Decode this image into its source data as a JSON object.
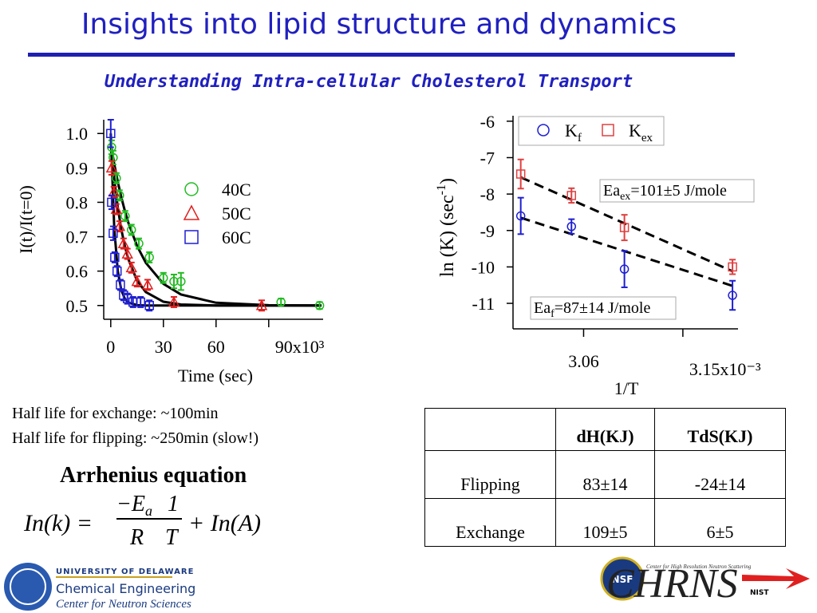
{
  "header": {
    "title": "Insights into lipid structure and dynamics",
    "subtitle": "Understanding Intra-cellular Cholesterol Transport"
  },
  "chart_data": [
    {
      "type": "scatter",
      "x_label": "Time (sec)",
      "y_label": "I(t)/I(t=0)",
      "xlim": [
        -4,
        121
      ],
      "xticks": [
        0,
        30,
        60,
        {
          "value": 90,
          "label": "90x10³"
        }
      ],
      "ylim": [
        0.46,
        1.04
      ],
      "yticks": [
        0.5,
        0.6,
        0.7,
        0.8,
        0.9,
        {
          "value": 1,
          "label": "1.0"
        }
      ],
      "legend": "upper center",
      "series": [
        {
          "name": "40C",
          "color": "#22bb22",
          "marker": "circle",
          "x": [
            0.5,
            1.4,
            3.2,
            5,
            8.2,
            11.8,
            16,
            22,
            30,
            36,
            40,
            97,
            119
          ],
          "values": [
            0.96,
            0.93,
            0.87,
            0.82,
            0.76,
            0.72,
            0.68,
            0.64,
            0.58,
            0.57,
            0.57,
            0.51,
            0.5
          ],
          "errors": [
            0.02,
            0.02,
            0.015,
            0.015,
            0.015,
            0.015,
            0.015,
            0.015,
            0.015,
            0.02,
            0.025,
            0.01,
            0.01
          ]
        },
        {
          "name": "50C",
          "color": "#e02020",
          "marker": "triangle",
          "x": [
            0.5,
            1.8,
            3.2,
            5,
            7.3,
            9.5,
            11.8,
            15,
            21,
            36,
            86
          ],
          "values": [
            0.9,
            0.83,
            0.78,
            0.73,
            0.68,
            0.65,
            0.61,
            0.57,
            0.56,
            0.51,
            0.5
          ],
          "errors": [
            0.02,
            0.015,
            0.015,
            0.015,
            0.015,
            0.015,
            0.015,
            0.015,
            0.015,
            0.015,
            0.015
          ]
        },
        {
          "name": "60C",
          "color": "#1f1fd0",
          "marker": "square",
          "x": [
            0,
            0.5,
            1.4,
            2.3,
            3.6,
            5.5,
            7.3,
            9.5,
            12.7,
            17,
            22
          ],
          "values": [
            1.0,
            0.8,
            0.71,
            0.64,
            0.6,
            0.56,
            0.53,
            0.52,
            0.51,
            0.51,
            0.5
          ],
          "errors": [
            0.04,
            0.02,
            0.02,
            0.015,
            0.015,
            0.015,
            0.015,
            0.015,
            0.015,
            0.015,
            0.015
          ]
        }
      ],
      "fits": [
        {
          "color": "#000000",
          "x": [
            0,
            2,
            4,
            6,
            8,
            10,
            15,
            20,
            30,
            40,
            60,
            90,
            120
          ],
          "values": [
            0.97,
            0.911,
            0.86,
            0.815,
            0.776,
            0.741,
            0.673,
            0.624,
            0.563,
            0.532,
            0.508,
            0.501,
            0.5
          ]
        },
        {
          "color": "#000000",
          "x": [
            0,
            2,
            4,
            6,
            8,
            10,
            15,
            20,
            30,
            40,
            60,
            90,
            120
          ],
          "values": [
            0.97,
            0.866,
            0.785,
            0.722,
            0.673,
            0.635,
            0.572,
            0.539,
            0.511,
            0.503,
            0.5,
            0.5,
            0.5
          ]
        },
        {
          "color": "#000000",
          "x": [
            0,
            2,
            4,
            6,
            8,
            10,
            15,
            20,
            30,
            40,
            60,
            90,
            120
          ],
          "values": [
            1.0,
            0.725,
            0.601,
            0.545,
            0.52,
            0.509,
            0.501,
            0.5,
            0.5,
            0.5,
            0.5,
            0.5,
            0.5
          ]
        }
      ]
    },
    {
      "type": "scatter",
      "x_label": "1/T",
      "y_label": [
        "ln (K) (sec",
        "-1",
        ")"
      ],
      "xlim": [
        2.996,
        3.2
      ],
      "xticks": [
        3.06,
        {
          "value": 3.15,
          "label": "3.15x10⁻³"
        }
      ],
      "ylim": [
        -11.7,
        -5.85
      ],
      "yticks": [
        -11,
        -10,
        -9,
        -8,
        -7,
        -6
      ],
      "legend": "upper left",
      "series": [
        {
          "name": "K",
          "subscript": "f",
          "color": "#1f1fd0",
          "marker": "circle",
          "x": [
            3.003,
            3.049,
            3.097,
            3.195
          ],
          "values": [
            -8.6,
            -8.89,
            -10.06,
            -10.78
          ],
          "errors": [
            0.5,
            0.2,
            0.5,
            0.4
          ]
        },
        {
          "name": "K",
          "subscript": "ex",
          "color": "#e04040",
          "marker": "square",
          "x": [
            3.003,
            3.049,
            3.097,
            3.195
          ],
          "values": [
            -7.45,
            -8.04,
            -8.92,
            -10.0
          ],
          "errors": [
            0.4,
            0.2,
            0.35,
            0.2
          ]
        }
      ],
      "fits": [
        {
          "color": "#000000",
          "dashed": true,
          "x": [
            3.003,
            3.195
          ],
          "values": [
            -7.54,
            -10.12
          ]
        },
        {
          "color": "#000000",
          "dashed": true,
          "x": [
            3.003,
            3.195
          ],
          "values": [
            -8.65,
            -10.52
          ]
        }
      ],
      "annotations": [
        {
          "text": "Ea",
          "subscript": "ex",
          "rest": "=101±5 J/mole",
          "color": "#e02020"
        },
        {
          "text": "Ea",
          "subscript": "f",
          "rest": "=87±14 J/mole",
          "color": "#1f1fd0"
        }
      ]
    }
  ],
  "notes": [
    "Half life for exchange: ~100min",
    "Half life for flipping: ~250min (slow!)"
  ],
  "equation": {
    "heading": "Arrhenius equation",
    "lhs": "In(k) =",
    "numerator": "−E",
    "numerator_sub": "a",
    "numerator_2": "1",
    "denominator": "R",
    "denominator_2": "T",
    "rhs": "+ In(A)"
  },
  "table": {
    "columns": [
      "dH(KJ)",
      "TdS(KJ)"
    ],
    "rows": [
      [
        "Flipping",
        "83±14",
        "-24±14"
      ],
      [
        "Exchange",
        "109±5",
        "6±5"
      ]
    ]
  },
  "logos": {
    "university": "UNIVERSITY OF DELAWARE",
    "department": "Chemical Engineering",
    "center": "Center for Neutron Sciences",
    "chrns": "CHRNS",
    "nsf": "NSF",
    "nist": "NIST",
    "chrns_full": "Center for High Resolution Neutron Scattering"
  }
}
